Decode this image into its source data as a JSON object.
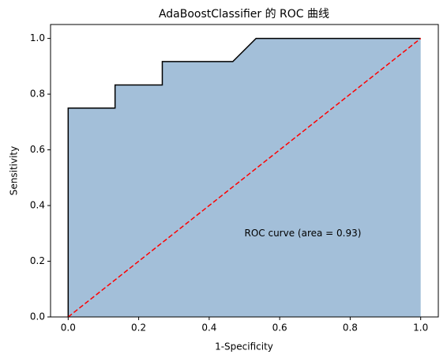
{
  "chart_data": {
    "type": "line",
    "title": "AdaBoostClassifier 的 ROC 曲线",
    "xlabel": "1-Specificity",
    "ylabel": "Sensitivity",
    "series": [
      {
        "x": [
          0,
          0,
          0.133,
          0.133,
          0.267,
          0.267,
          0.467,
          0.533,
          1
        ],
        "values": [
          0,
          0.75,
          0.75,
          0.833,
          0.833,
          0.917,
          0.917,
          1.0,
          1.0
        ],
        "color": "#000000",
        "fill_color": "#a3bfd9"
      },
      {
        "x": [
          0,
          1
        ],
        "values": [
          0,
          1
        ],
        "color": "#ff0000",
        "dashed": true
      }
    ],
    "annotations": [
      {
        "text": "ROC curve (area = 0.93)",
        "x": 0.5,
        "y": 0.3
      }
    ],
    "xlim": [
      -0.05,
      1.05
    ],
    "ylim": [
      0,
      1.05
    ],
    "xticks": [
      {
        "value": 0,
        "label": "0.0"
      },
      {
        "value": 0.2,
        "label": "0.2"
      },
      {
        "value": 0.4,
        "label": "0.4"
      },
      {
        "value": 0.6,
        "label": "0.6"
      },
      {
        "value": 0.8,
        "label": "0.8"
      },
      {
        "value": 1,
        "label": "1.0"
      }
    ],
    "yticks": [
      {
        "value": 0,
        "label": "0.0"
      },
      {
        "value": 0.2,
        "label": "0.2"
      },
      {
        "value": 0.4,
        "label": "0.4"
      },
      {
        "value": 0.6,
        "label": "0.6"
      },
      {
        "value": 0.8,
        "label": "0.8"
      },
      {
        "value": 1,
        "label": "1.0"
      }
    ]
  }
}
